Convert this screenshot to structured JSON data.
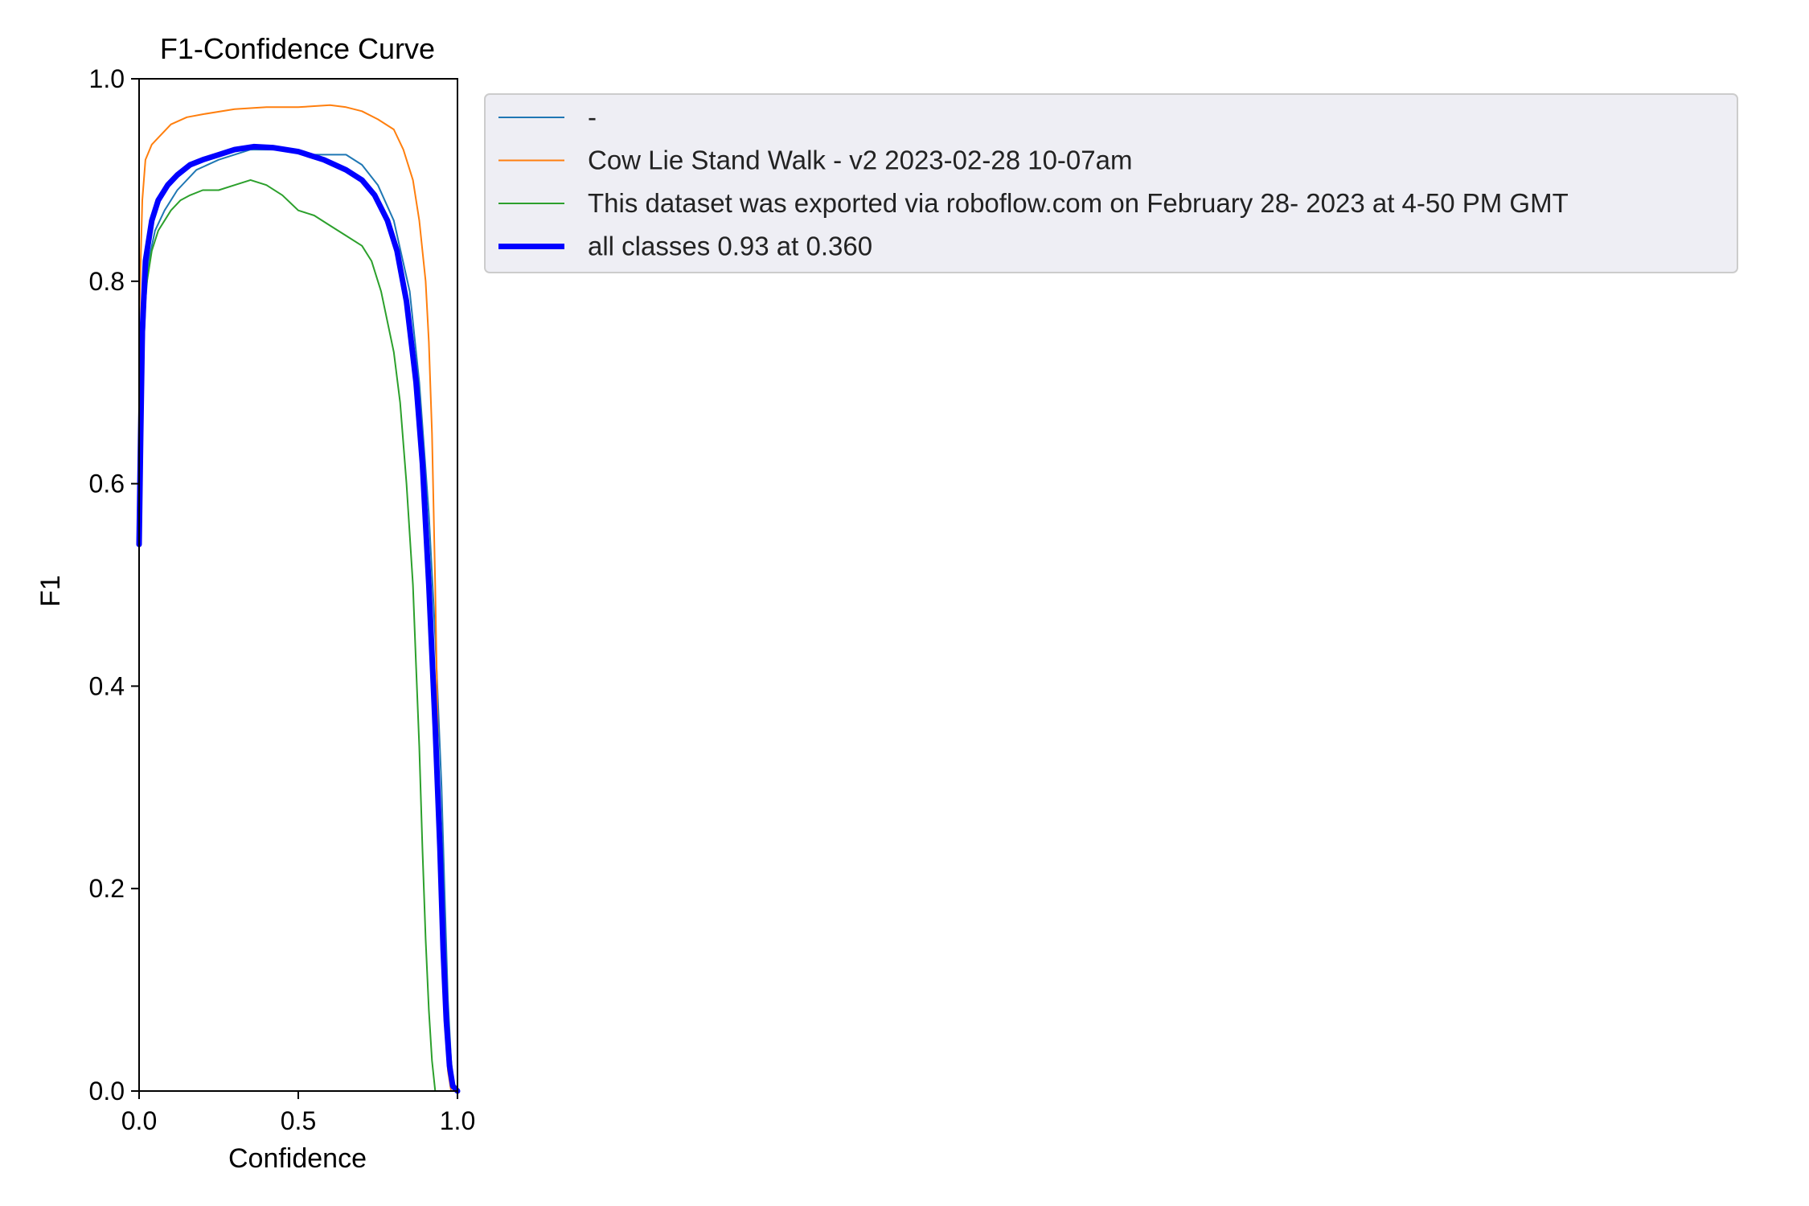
{
  "chart_data": {
    "type": "line",
    "title": "F1-Confidence Curve",
    "xlabel": "Confidence",
    "ylabel": "F1",
    "xlim": [
      0,
      1
    ],
    "ylim": [
      0,
      1
    ],
    "xticks": [
      "0.0",
      "0.5",
      "1.0"
    ],
    "yticks": [
      "0.0",
      "0.2",
      "0.4",
      "0.6",
      "0.8",
      "1.0"
    ],
    "grid": false,
    "legend_position": "outside-top-right",
    "series": [
      {
        "name": "-",
        "color": "#1f77b4",
        "width": 2,
        "points": [
          [
            0.0,
            0.55
          ],
          [
            0.01,
            0.7
          ],
          [
            0.02,
            0.78
          ],
          [
            0.03,
            0.82
          ],
          [
            0.05,
            0.85
          ],
          [
            0.08,
            0.87
          ],
          [
            0.12,
            0.89
          ],
          [
            0.18,
            0.91
          ],
          [
            0.25,
            0.92
          ],
          [
            0.35,
            0.93
          ],
          [
            0.45,
            0.93
          ],
          [
            0.55,
            0.925
          ],
          [
            0.65,
            0.925
          ],
          [
            0.7,
            0.915
          ],
          [
            0.75,
            0.895
          ],
          [
            0.8,
            0.86
          ],
          [
            0.85,
            0.79
          ],
          [
            0.88,
            0.7
          ],
          [
            0.91,
            0.57
          ],
          [
            0.93,
            0.45
          ],
          [
            0.95,
            0.3
          ],
          [
            0.96,
            0.19
          ],
          [
            0.97,
            0.09
          ],
          [
            0.98,
            0.03
          ],
          [
            0.99,
            0.0
          ],
          [
            1.0,
            0.0
          ]
        ]
      },
      {
        "name": "Cow Lie Stand Walk - v2 2023-02-28 10-07am",
        "color": "#ff7f0e",
        "width": 2,
        "points": [
          [
            0.0,
            0.76
          ],
          [
            0.01,
            0.88
          ],
          [
            0.02,
            0.92
          ],
          [
            0.04,
            0.935
          ],
          [
            0.07,
            0.945
          ],
          [
            0.1,
            0.955
          ],
          [
            0.15,
            0.962
          ],
          [
            0.2,
            0.965
          ],
          [
            0.3,
            0.97
          ],
          [
            0.4,
            0.972
          ],
          [
            0.5,
            0.972
          ],
          [
            0.6,
            0.974
          ],
          [
            0.65,
            0.972
          ],
          [
            0.7,
            0.968
          ],
          [
            0.75,
            0.96
          ],
          [
            0.8,
            0.95
          ],
          [
            0.83,
            0.93
          ],
          [
            0.86,
            0.9
          ],
          [
            0.88,
            0.86
          ],
          [
            0.9,
            0.8
          ],
          [
            0.91,
            0.74
          ],
          [
            0.92,
            0.65
          ],
          [
            0.93,
            0.5
          ],
          [
            0.94,
            0.32
          ],
          [
            0.95,
            0.18
          ],
          [
            0.96,
            0.08
          ],
          [
            0.97,
            0.02
          ],
          [
            0.98,
            0.0
          ],
          [
            1.0,
            0.0
          ]
        ]
      },
      {
        "name": "This dataset was exported via roboflow.com on February 28- 2023 at 4-50 PM GMT",
        "color": "#2ca02c",
        "width": 2,
        "points": [
          [
            0.0,
            0.55
          ],
          [
            0.01,
            0.72
          ],
          [
            0.02,
            0.79
          ],
          [
            0.04,
            0.83
          ],
          [
            0.06,
            0.85
          ],
          [
            0.08,
            0.86
          ],
          [
            0.1,
            0.87
          ],
          [
            0.13,
            0.88
          ],
          [
            0.16,
            0.885
          ],
          [
            0.2,
            0.89
          ],
          [
            0.25,
            0.89
          ],
          [
            0.3,
            0.895
          ],
          [
            0.35,
            0.9
          ],
          [
            0.4,
            0.895
          ],
          [
            0.45,
            0.885
          ],
          [
            0.5,
            0.87
          ],
          [
            0.55,
            0.865
          ],
          [
            0.6,
            0.855
          ],
          [
            0.65,
            0.845
          ],
          [
            0.7,
            0.835
          ],
          [
            0.73,
            0.82
          ],
          [
            0.76,
            0.79
          ],
          [
            0.78,
            0.76
          ],
          [
            0.8,
            0.73
          ],
          [
            0.82,
            0.68
          ],
          [
            0.84,
            0.6
          ],
          [
            0.86,
            0.5
          ],
          [
            0.87,
            0.42
          ],
          [
            0.88,
            0.34
          ],
          [
            0.89,
            0.24
          ],
          [
            0.9,
            0.15
          ],
          [
            0.91,
            0.08
          ],
          [
            0.92,
            0.03
          ],
          [
            0.93,
            0.0
          ],
          [
            1.0,
            0.0
          ]
        ]
      },
      {
        "name": "all classes 0.93 at 0.360",
        "color": "#0000ff",
        "width": 7,
        "points": [
          [
            0.0,
            0.54
          ],
          [
            0.005,
            0.65
          ],
          [
            0.01,
            0.75
          ],
          [
            0.02,
            0.82
          ],
          [
            0.04,
            0.86
          ],
          [
            0.06,
            0.88
          ],
          [
            0.09,
            0.895
          ],
          [
            0.12,
            0.905
          ],
          [
            0.16,
            0.915
          ],
          [
            0.2,
            0.92
          ],
          [
            0.25,
            0.925
          ],
          [
            0.3,
            0.93
          ],
          [
            0.36,
            0.933
          ],
          [
            0.42,
            0.932
          ],
          [
            0.5,
            0.928
          ],
          [
            0.58,
            0.92
          ],
          [
            0.65,
            0.91
          ],
          [
            0.7,
            0.9
          ],
          [
            0.74,
            0.885
          ],
          [
            0.78,
            0.86
          ],
          [
            0.81,
            0.83
          ],
          [
            0.84,
            0.78
          ],
          [
            0.87,
            0.7
          ],
          [
            0.89,
            0.62
          ],
          [
            0.91,
            0.5
          ],
          [
            0.93,
            0.36
          ],
          [
            0.945,
            0.24
          ],
          [
            0.955,
            0.14
          ],
          [
            0.965,
            0.07
          ],
          [
            0.975,
            0.025
          ],
          [
            0.985,
            0.005
          ],
          [
            1.0,
            0.0
          ]
        ]
      }
    ]
  }
}
